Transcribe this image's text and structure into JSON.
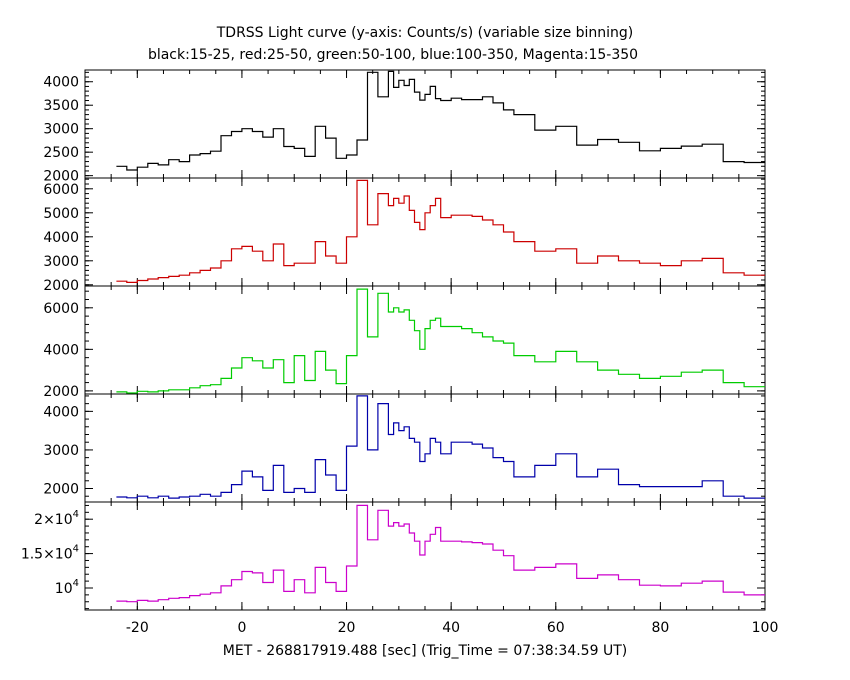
{
  "chart_data": {
    "type": "line",
    "title": "TDRSS Light curve (y-axis: Counts/s) (variable size binning)",
    "subtitle": "black:15-25, red:25-50, green:50-100, blue:100-350, Magenta:15-350",
    "xlabel": "MET - 268817919.488 [sec] (Trig_Time = 07:38:34.59 UT)",
    "xlim": [
      -30,
      100
    ],
    "x_ticks": [
      -20,
      0,
      20,
      40,
      60,
      80,
      100
    ],
    "x_tick_labels": [
      "-20",
      "0",
      "20",
      "40",
      "60",
      "80",
      "100"
    ],
    "grid": false,
    "step": true,
    "panels": [
      {
        "name": "black:15-25",
        "color": "#000000",
        "ylim": [
          1950,
          4250
        ],
        "y_ticks": [
          2000,
          2500,
          3000,
          3500,
          4000
        ],
        "y_tick_labels": [
          "2000",
          "2500",
          "3000",
          "3500",
          "4000"
        ],
        "edges": [
          -24,
          -22,
          -20,
          -18,
          -16,
          -14,
          -12,
          -10,
          -8,
          -6,
          -4,
          -2,
          0,
          2,
          4,
          6,
          8,
          10,
          12,
          14,
          16,
          18,
          20,
          22,
          24,
          26,
          28,
          29,
          30,
          31,
          32,
          33,
          34,
          35,
          36,
          37,
          38,
          40,
          42,
          44,
          46,
          48,
          50,
          52,
          56,
          60,
          64,
          68,
          72,
          76,
          80,
          84,
          88,
          92,
          96,
          100
        ],
        "values": [
          2200,
          2120,
          2180,
          2260,
          2230,
          2340,
          2300,
          2440,
          2470,
          2520,
          2850,
          2940,
          3000,
          2940,
          2820,
          3000,
          2620,
          2580,
          2410,
          3050,
          2800,
          2370,
          2440,
          2760,
          4200,
          3680,
          4220,
          3880,
          4030,
          3920,
          4050,
          3780,
          3610,
          3730,
          3900,
          3640,
          3600,
          3650,
          3620,
          3620,
          3680,
          3550,
          3400,
          3300,
          2970,
          3050,
          2650,
          2770,
          2710,
          2530,
          2580,
          2630,
          2670,
          2300,
          2280
        ]
      },
      {
        "name": "red:25-50",
        "color": "#cc0000",
        "ylim": [
          1950,
          6450
        ],
        "y_ticks": [
          2000,
          3000,
          4000,
          5000,
          6000
        ],
        "y_tick_labels": [
          "2000",
          "3000",
          "4000",
          "5000",
          "6000"
        ],
        "edges": [
          -24,
          -22,
          -20,
          -18,
          -16,
          -14,
          -12,
          -10,
          -8,
          -6,
          -4,
          -2,
          0,
          2,
          4,
          6,
          8,
          10,
          12,
          14,
          16,
          18,
          20,
          22,
          24,
          26,
          28,
          29,
          30,
          31,
          32,
          33,
          34,
          35,
          36,
          37,
          38,
          40,
          42,
          44,
          46,
          48,
          50,
          52,
          56,
          60,
          64,
          68,
          72,
          76,
          80,
          84,
          88,
          92,
          96,
          100
        ],
        "values": [
          2150,
          2100,
          2180,
          2240,
          2300,
          2350,
          2400,
          2500,
          2600,
          2700,
          3000,
          3500,
          3600,
          3400,
          3000,
          3700,
          2800,
          2900,
          2900,
          3800,
          3200,
          2900,
          4000,
          6350,
          4500,
          5800,
          5300,
          5600,
          5400,
          5700,
          5100,
          4600,
          4300,
          5000,
          5300,
          5600,
          4800,
          4900,
          4900,
          4850,
          4700,
          4500,
          4200,
          3800,
          3400,
          3500,
          2900,
          3200,
          3000,
          2900,
          2800,
          3000,
          3100,
          2500,
          2400
        ]
      },
      {
        "name": "green:50-100",
        "color": "#00cc00",
        "ylim": [
          1850,
          7050
        ],
        "y_ticks": [
          2000,
          4000,
          6000
        ],
        "y_tick_labels": [
          "2000",
          "4000",
          "6000"
        ],
        "edges": [
          -24,
          -22,
          -20,
          -18,
          -16,
          -14,
          -12,
          -10,
          -8,
          -6,
          -4,
          -2,
          0,
          2,
          4,
          6,
          8,
          10,
          12,
          14,
          16,
          18,
          20,
          22,
          24,
          26,
          28,
          29,
          30,
          31,
          32,
          33,
          34,
          35,
          36,
          37,
          38,
          40,
          42,
          44,
          46,
          48,
          50,
          52,
          56,
          60,
          64,
          68,
          72,
          76,
          80,
          84,
          88,
          92,
          96,
          100
        ],
        "values": [
          1950,
          1900,
          1980,
          1950,
          2000,
          2050,
          2050,
          2150,
          2250,
          2300,
          2600,
          3100,
          3600,
          3450,
          3100,
          3500,
          2400,
          3700,
          2500,
          3900,
          3000,
          2350,
          3700,
          6900,
          4600,
          6700,
          5800,
          6000,
          5800,
          5900,
          5400,
          4900,
          4000,
          5000,
          5400,
          5500,
          5100,
          5100,
          5000,
          4800,
          4600,
          4400,
          4300,
          3700,
          3400,
          3900,
          3400,
          3000,
          2800,
          2600,
          2700,
          2900,
          3000,
          2400,
          2200
        ]
      },
      {
        "name": "blue:100-350",
        "color": "#0000aa",
        "ylim": [
          1650,
          4450
        ],
        "y_ticks": [
          2000,
          3000,
          4000
        ],
        "y_tick_labels": [
          "2000",
          "3000",
          "4000"
        ],
        "edges": [
          -24,
          -22,
          -20,
          -18,
          -16,
          -14,
          -12,
          -10,
          -8,
          -6,
          -4,
          -2,
          0,
          2,
          4,
          6,
          8,
          10,
          12,
          14,
          16,
          18,
          20,
          22,
          24,
          26,
          28,
          29,
          30,
          31,
          32,
          33,
          34,
          35,
          36,
          37,
          38,
          40,
          42,
          44,
          46,
          48,
          50,
          52,
          56,
          60,
          64,
          68,
          72,
          76,
          80,
          84,
          88,
          92,
          96,
          100
        ],
        "values": [
          1780,
          1760,
          1800,
          1760,
          1800,
          1750,
          1780,
          1800,
          1850,
          1800,
          1900,
          2100,
          2450,
          2300,
          1950,
          2600,
          1900,
          2000,
          1900,
          2750,
          2350,
          1950,
          3100,
          4400,
          3000,
          4200,
          3400,
          3700,
          3500,
          3600,
          3300,
          3200,
          2700,
          2900,
          3300,
          3200,
          2900,
          3200,
          3200,
          3150,
          3050,
          2800,
          2700,
          2300,
          2600,
          2900,
          2300,
          2500,
          2100,
          2050,
          2050,
          2050,
          2200,
          1800,
          1750
        ]
      },
      {
        "name": "Magenta:15-350",
        "color": "#cc00cc",
        "ylim": [
          6800,
          22500
        ],
        "y_ticks": [
          10000,
          15000,
          20000
        ],
        "y_tick_labels": [
          "10^4",
          "1.5×10^4",
          "2×10^4"
        ],
        "edges": [
          -24,
          -22,
          -20,
          -18,
          -16,
          -14,
          -12,
          -10,
          -8,
          -6,
          -4,
          -2,
          0,
          2,
          4,
          6,
          8,
          10,
          12,
          14,
          16,
          18,
          20,
          22,
          24,
          26,
          28,
          29,
          30,
          31,
          32,
          33,
          34,
          35,
          36,
          37,
          38,
          40,
          42,
          44,
          46,
          48,
          50,
          52,
          56,
          60,
          64,
          68,
          72,
          76,
          80,
          84,
          88,
          92,
          96,
          100
        ],
        "values": [
          8100,
          8000,
          8200,
          8100,
          8300,
          8500,
          8600,
          8900,
          9100,
          9300,
          10300,
          11200,
          12400,
          12200,
          10800,
          12600,
          9500,
          11200,
          9300,
          13000,
          10800,
          9500,
          13200,
          22000,
          17000,
          21300,
          19000,
          19500,
          19000,
          19300,
          18000,
          16800,
          14800,
          16800,
          17800,
          18800,
          16800,
          16800,
          16700,
          16600,
          16400,
          15500,
          14700,
          12600,
          13000,
          13500,
          11400,
          11900,
          11200,
          10400,
          10300,
          10700,
          11000,
          9400,
          9000
        ]
      }
    ]
  }
}
